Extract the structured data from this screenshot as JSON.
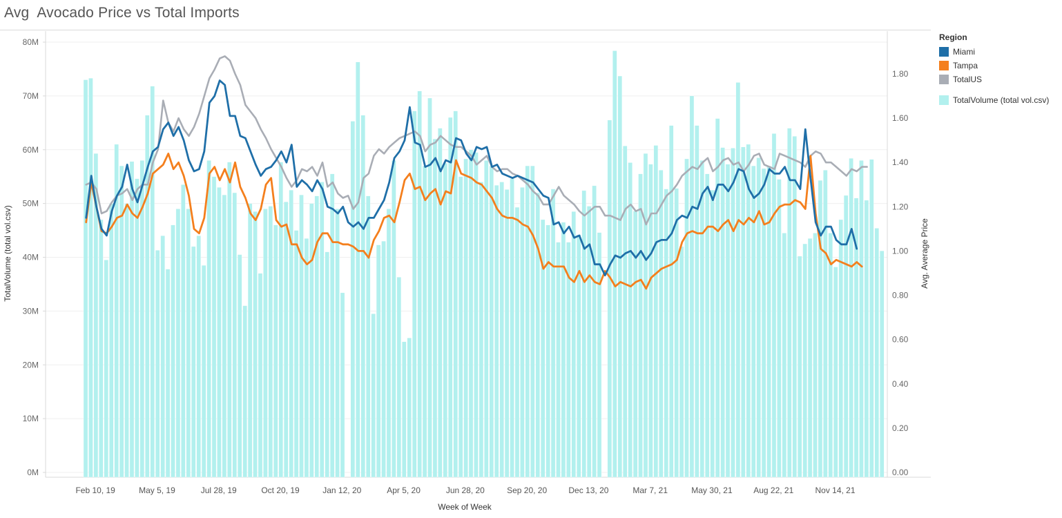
{
  "page_title": "Avg  Avocado Price vs Total Imports",
  "legend": {
    "title": "Region",
    "items": [
      {
        "label": "Miami",
        "color": "#1f6fa8"
      },
      {
        "label": "Tampa",
        "color": "#f47f1d"
      },
      {
        "label": "TotalUS",
        "color": "#a9adb5"
      }
    ],
    "bar_item": {
      "label": "TotalVolume (total vol.csv)",
      "color": "#b2f0ee"
    }
  },
  "chart_data": {
    "type": "bar+line",
    "xlabel": "Week of Week",
    "ylabel_left": "TotalVolume (total vol.csv)",
    "ylabel_right": "Avg. Average Price",
    "ylim_left": [
      0,
      80
    ],
    "ylim_right": [
      0,
      1.9
    ],
    "left_ticks": [
      "0M",
      "10M",
      "20M",
      "30M",
      "40M",
      "50M",
      "60M",
      "70M",
      "80M"
    ],
    "right_ticks": [
      "0.00",
      "0.20",
      "0.40",
      "0.60",
      "0.80",
      "1.00",
      "1.20",
      "1.40",
      "1.60",
      "1.80"
    ],
    "x_ticks": [
      "Feb 10, 19",
      "May 5, 19",
      "Jul 28, 19",
      "Oct 20, 19",
      "Jan 12, 20",
      "Apr 5, 20",
      "Jun 28, 20",
      "Sep 20, 20",
      "Dec 13, 20",
      "Mar 7, 21",
      "May 30, 21",
      "Aug 22, 21",
      "Nov 14, 21"
    ],
    "x_tick_week_index": [
      1,
      13,
      25,
      37,
      49,
      61,
      73,
      85,
      97,
      109,
      121,
      133,
      145
    ],
    "grid": true,
    "legend_position": "right",
    "bars": {
      "name": "TotalVolume (total vol.csv)",
      "unit": "M",
      "values": [
        73,
        73.3,
        59.3,
        47,
        39.5,
        50,
        61,
        57,
        50,
        57.8,
        54.6,
        58,
        66.4,
        71.8,
        41.3,
        44,
        37.8,
        46,
        49,
        53.5,
        49,
        42,
        44,
        38.5,
        58,
        55,
        53,
        51.6,
        57.7,
        52,
        40.5,
        31,
        50,
        48.5,
        37,
        49,
        49.5,
        46,
        57.7,
        50.3,
        52.5,
        45,
        51.6,
        43.5,
        50,
        51.4,
        54,
        41,
        55.5,
        49,
        33.4,
        0,
        65.3,
        76.3,
        66.4,
        51.4,
        29.5,
        42.3,
        43,
        49,
        58,
        36.3,
        24.3,
        25,
        67.2,
        70.9,
        57,
        69.6,
        62,
        64,
        57.5,
        66,
        67.2,
        55,
        58.3,
        60,
        59.5,
        54,
        58,
        57,
        53.4,
        54,
        52.6,
        54.6,
        49.3,
        53,
        57,
        57,
        52,
        47,
        46,
        52.7,
        42.8,
        46.5,
        42.8,
        48.5,
        44.2,
        52.4,
        49.5,
        53.3,
        44.6,
        0,
        65.5,
        78.4,
        73.7,
        60.7,
        57.6,
        48.6,
        55.5,
        59.3,
        57.3,
        60.8,
        56.2,
        52.7,
        64.5,
        52.8,
        42,
        58.3,
        70,
        64.5,
        58,
        55.5,
        52.5,
        65.8,
        60.4,
        57.3,
        60.3,
        72.5,
        60.5,
        61,
        57,
        58.5,
        56.5,
        57,
        63,
        54.5,
        44.5,
        64,
        62.5,
        40.2,
        42.5,
        43.5,
        44.5,
        54.3,
        56.2,
        44.5,
        38.2,
        47,
        51.5,
        58.4,
        51,
        58,
        50.6,
        58.2,
        45.4,
        41.2
      ]
    },
    "series": [
      {
        "name": "Miami",
        "values": [
          1.15,
          1.34,
          1.2,
          1.1,
          1.07,
          1.18,
          1.25,
          1.29,
          1.39,
          1.28,
          1.22,
          1.3,
          1.38,
          1.45,
          1.47,
          1.55,
          1.58,
          1.52,
          1.56,
          1.5,
          1.41,
          1.36,
          1.37,
          1.45,
          1.67,
          1.7,
          1.77,
          1.75,
          1.61,
          1.61,
          1.52,
          1.51,
          1.45,
          1.39,
          1.34,
          1.37,
          1.38,
          1.41,
          1.45,
          1.4,
          1.48,
          1.29,
          1.32,
          1.3,
          1.27,
          1.32,
          1.28,
          1.2,
          1.19,
          1.17,
          1.2,
          1.13,
          1.11,
          1.13,
          1.1,
          1.15,
          1.15,
          1.19,
          1.23,
          1.31,
          1.42,
          1.45,
          1.5,
          1.65,
          1.49,
          1.48,
          1.38,
          1.39,
          1.42,
          1.36,
          1.41,
          1.4,
          1.51,
          1.5,
          1.44,
          1.41,
          1.47,
          1.46,
          1.47,
          1.38,
          1.39,
          1.35,
          1.34,
          1.33,
          1.34,
          1.33,
          1.32,
          1.31,
          1.28,
          1.25,
          1.24,
          1.12,
          1.13,
          1.08,
          1.11,
          1.06,
          1.07,
          1.01,
          1.03,
          0.94,
          0.94,
          0.89,
          0.94,
          0.98,
          0.97,
          0.99,
          1.0,
          0.97,
          1.0,
          0.96,
          0.99,
          1.04,
          1.05,
          1.05,
          1.08,
          1.14,
          1.16,
          1.15,
          1.2,
          1.19,
          1.26,
          1.29,
          1.23,
          1.3,
          1.3,
          1.27,
          1.31,
          1.37,
          1.36,
          1.28,
          1.24,
          1.26,
          1.3,
          1.37,
          1.35,
          1.35,
          1.38,
          1.32,
          1.32,
          1.28,
          1.55,
          1.33,
          1.13,
          1.07,
          1.11,
          1.11,
          1.05,
          1.03,
          1.03,
          1.1,
          1.01
        ]
      },
      {
        "name": "Tampa",
        "values": [
          1.13,
          1.31,
          1.2,
          1.09,
          1.08,
          1.11,
          1.15,
          1.16,
          1.21,
          1.17,
          1.15,
          1.2,
          1.26,
          1.35,
          1.37,
          1.39,
          1.44,
          1.37,
          1.4,
          1.34,
          1.25,
          1.1,
          1.08,
          1.15,
          1.35,
          1.38,
          1.32,
          1.37,
          1.31,
          1.4,
          1.29,
          1.24,
          1.17,
          1.14,
          1.19,
          1.3,
          1.33,
          1.14,
          1.11,
          1.12,
          1.03,
          1.03,
          0.97,
          0.94,
          0.96,
          1.04,
          1.08,
          1.08,
          1.04,
          1.04,
          1.03,
          1.03,
          1.02,
          1.0,
          1.0,
          0.97,
          1.05,
          1.09,
          1.15,
          1.16,
          1.13,
          1.22,
          1.32,
          1.35,
          1.28,
          1.29,
          1.23,
          1.26,
          1.28,
          1.21,
          1.27,
          1.26,
          1.41,
          1.35,
          1.34,
          1.33,
          1.31,
          1.3,
          1.27,
          1.24,
          1.19,
          1.16,
          1.15,
          1.15,
          1.14,
          1.12,
          1.11,
          1.07,
          1.01,
          0.92,
          0.95,
          0.93,
          0.93,
          0.93,
          0.88,
          0.86,
          0.91,
          0.86,
          0.89,
          0.86,
          0.85,
          0.91,
          0.88,
          0.84,
          0.86,
          0.85,
          0.84,
          0.86,
          0.87,
          0.83,
          0.88,
          0.9,
          0.92,
          0.93,
          0.94,
          0.96,
          1.04,
          1.08,
          1.09,
          1.08,
          1.08,
          1.11,
          1.11,
          1.09,
          1.12,
          1.14,
          1.09,
          1.14,
          1.12,
          1.15,
          1.13,
          1.18,
          1.12,
          1.13,
          1.17,
          1.2,
          1.21,
          1.21,
          1.23,
          1.22,
          1.19,
          1.43,
          1.17,
          1.01,
          0.99,
          0.94,
          0.96,
          0.95,
          0.94,
          0.93,
          0.95,
          0.93
        ]
      },
      {
        "name": "TotalUS",
        "values": [
          1.3,
          1.31,
          1.28,
          1.17,
          1.18,
          1.22,
          1.25,
          1.26,
          1.28,
          1.23,
          1.28,
          1.3,
          1.3,
          1.4,
          1.46,
          1.68,
          1.58,
          1.54,
          1.6,
          1.55,
          1.52,
          1.56,
          1.62,
          1.7,
          1.78,
          1.82,
          1.87,
          1.88,
          1.86,
          1.8,
          1.75,
          1.66,
          1.63,
          1.6,
          1.55,
          1.51,
          1.46,
          1.42,
          1.38,
          1.33,
          1.29,
          1.32,
          1.37,
          1.36,
          1.38,
          1.34,
          1.4,
          1.29,
          1.31,
          1.26,
          1.24,
          1.25,
          1.19,
          1.22,
          1.33,
          1.35,
          1.43,
          1.46,
          1.44,
          1.47,
          1.49,
          1.51,
          1.52,
          1.53,
          1.54,
          1.52,
          1.45,
          1.48,
          1.49,
          1.52,
          1.5,
          1.48,
          1.47,
          1.47,
          1.45,
          1.43,
          1.39,
          1.41,
          1.43,
          1.38,
          1.36,
          1.37,
          1.37,
          1.35,
          1.34,
          1.32,
          1.3,
          1.27,
          1.25,
          1.21,
          1.21,
          1.25,
          1.29,
          1.25,
          1.23,
          1.21,
          1.18,
          1.16,
          1.18,
          1.2,
          1.2,
          1.16,
          1.16,
          1.15,
          1.14,
          1.19,
          1.21,
          1.18,
          1.19,
          1.12,
          1.17,
          1.17,
          1.21,
          1.25,
          1.27,
          1.3,
          1.34,
          1.36,
          1.38,
          1.37,
          1.4,
          1.42,
          1.36,
          1.38,
          1.41,
          1.42,
          1.39,
          1.4,
          1.36,
          1.39,
          1.43,
          1.44,
          1.39,
          1.38,
          1.37,
          1.44,
          1.43,
          1.42,
          1.41,
          1.4,
          1.38,
          1.43,
          1.45,
          1.44,
          1.4,
          1.4,
          1.38,
          1.36,
          1.34,
          1.37,
          1.36,
          1.38,
          1.38
        ]
      }
    ]
  }
}
